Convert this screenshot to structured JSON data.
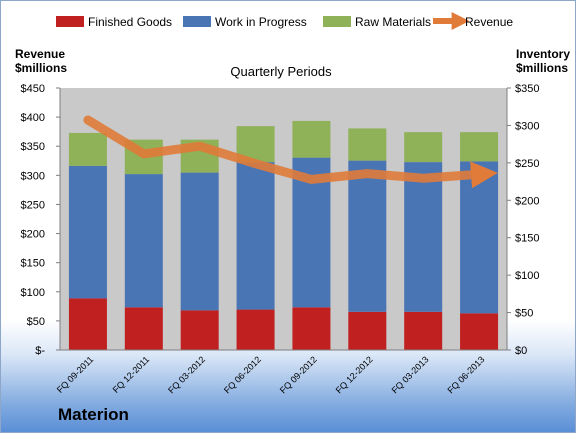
{
  "brand": "Materion",
  "chart_data": {
    "type": "bar",
    "stacked": true,
    "subtitle": "Quarterly Periods",
    "categories": [
      "FQ 09-2011",
      "FQ 12-2011",
      "FQ 03-2012",
      "FQ 06-2012",
      "FQ 09-2012",
      "FQ 12-2012",
      "FQ 03-2013",
      "FQ 06-2013"
    ],
    "left_axis": {
      "title_line1": "Revenue",
      "title_line2": "$millions",
      "ylim": [
        0,
        450
      ],
      "tick_labels": [
        "$-",
        "$50",
        "$100",
        "$150",
        "$200",
        "$250",
        "$300",
        "$350",
        "$400",
        "$450"
      ]
    },
    "right_axis": {
      "title_line1": "Inventory",
      "title_line2": "$millions",
      "ylim": [
        0,
        350
      ],
      "tick_labels": [
        "$0",
        "$50",
        "$100",
        "$150",
        "$200",
        "$250",
        "$300",
        "$350"
      ]
    },
    "series": [
      {
        "name": "Finished Goods",
        "axis": "right",
        "color": "#c0201f",
        "values": [
          69,
          57,
          53,
          54,
          57,
          51,
          51,
          49
        ]
      },
      {
        "name": "Work in Progress",
        "axis": "right",
        "color": "#4a75b5",
        "values": [
          177,
          178,
          184,
          197,
          200,
          202,
          200,
          203
        ]
      },
      {
        "name": "Raw Materials",
        "axis": "right",
        "color": "#8fb158",
        "values": [
          44,
          46,
          44,
          48,
          49,
          43,
          40,
          39
        ]
      },
      {
        "name": "Revenue",
        "type": "line",
        "axis": "left",
        "color": "#e07b39",
        "values": [
          395,
          337,
          350,
          320,
          293,
          303,
          295,
          302
        ]
      }
    ],
    "legend_position": "top",
    "grid": false
  }
}
